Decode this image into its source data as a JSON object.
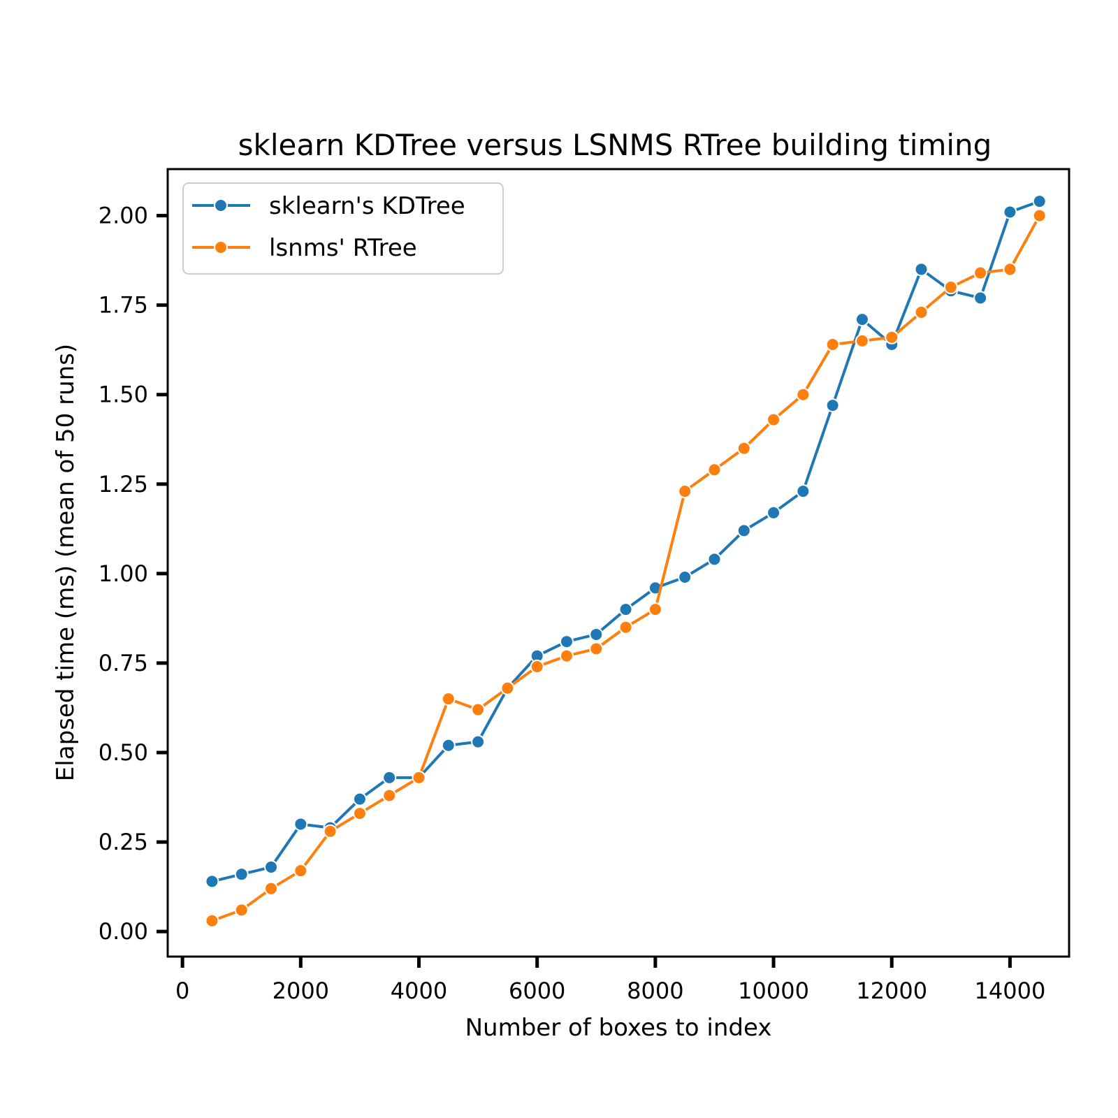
{
  "chart_data": {
    "type": "line",
    "title": "sklearn KDTree versus LSNMS RTree building timing",
    "xlabel": "Number of boxes to index",
    "ylabel": "Elapsed time (ms) (mean of 50 runs)",
    "xlim": [
      -250,
      15000
    ],
    "ylim": [
      -0.07,
      2.13
    ],
    "xticks": [
      0,
      2000,
      4000,
      6000,
      8000,
      10000,
      12000,
      14000
    ],
    "xtick_labels": [
      "0",
      "2000",
      "4000",
      "6000",
      "8000",
      "10000",
      "12000",
      "14000"
    ],
    "yticks": [
      0.0,
      0.25,
      0.5,
      0.75,
      1.0,
      1.25,
      1.5,
      1.75,
      2.0
    ],
    "ytick_labels": [
      "0.00",
      "0.25",
      "0.50",
      "0.75",
      "1.00",
      "1.25",
      "1.50",
      "1.75",
      "2.00"
    ],
    "grid": false,
    "legend_position": "top-left",
    "x": [
      500,
      1000,
      1500,
      2000,
      2500,
      3000,
      3500,
      4000,
      4500,
      5000,
      5500,
      6000,
      6500,
      7000,
      7500,
      8000,
      8500,
      9000,
      9500,
      10000,
      10500,
      11000,
      11500,
      12000,
      12500,
      13000,
      13500,
      14000,
      14500
    ],
    "series": [
      {
        "name": "sklearn's KDTree",
        "color": "#1f77b4",
        "values": [
          0.14,
          0.16,
          0.18,
          0.3,
          0.29,
          0.37,
          0.43,
          0.43,
          0.52,
          0.53,
          0.68,
          0.77,
          0.81,
          0.83,
          0.9,
          0.96,
          0.99,
          1.04,
          1.12,
          1.17,
          1.23,
          1.47,
          1.71,
          1.64,
          1.85,
          1.79,
          1.77,
          2.01,
          2.04
        ]
      },
      {
        "name": "lsnms' RTree",
        "color": "#ff7f0e",
        "values": [
          0.03,
          0.06,
          0.12,
          0.17,
          0.28,
          0.33,
          0.38,
          0.43,
          0.65,
          0.62,
          0.68,
          0.74,
          0.77,
          0.79,
          0.85,
          0.9,
          1.23,
          1.29,
          1.35,
          1.43,
          1.5,
          1.64,
          1.65,
          1.66,
          1.73,
          1.8,
          1.84,
          1.85,
          2.0
        ]
      }
    ]
  }
}
